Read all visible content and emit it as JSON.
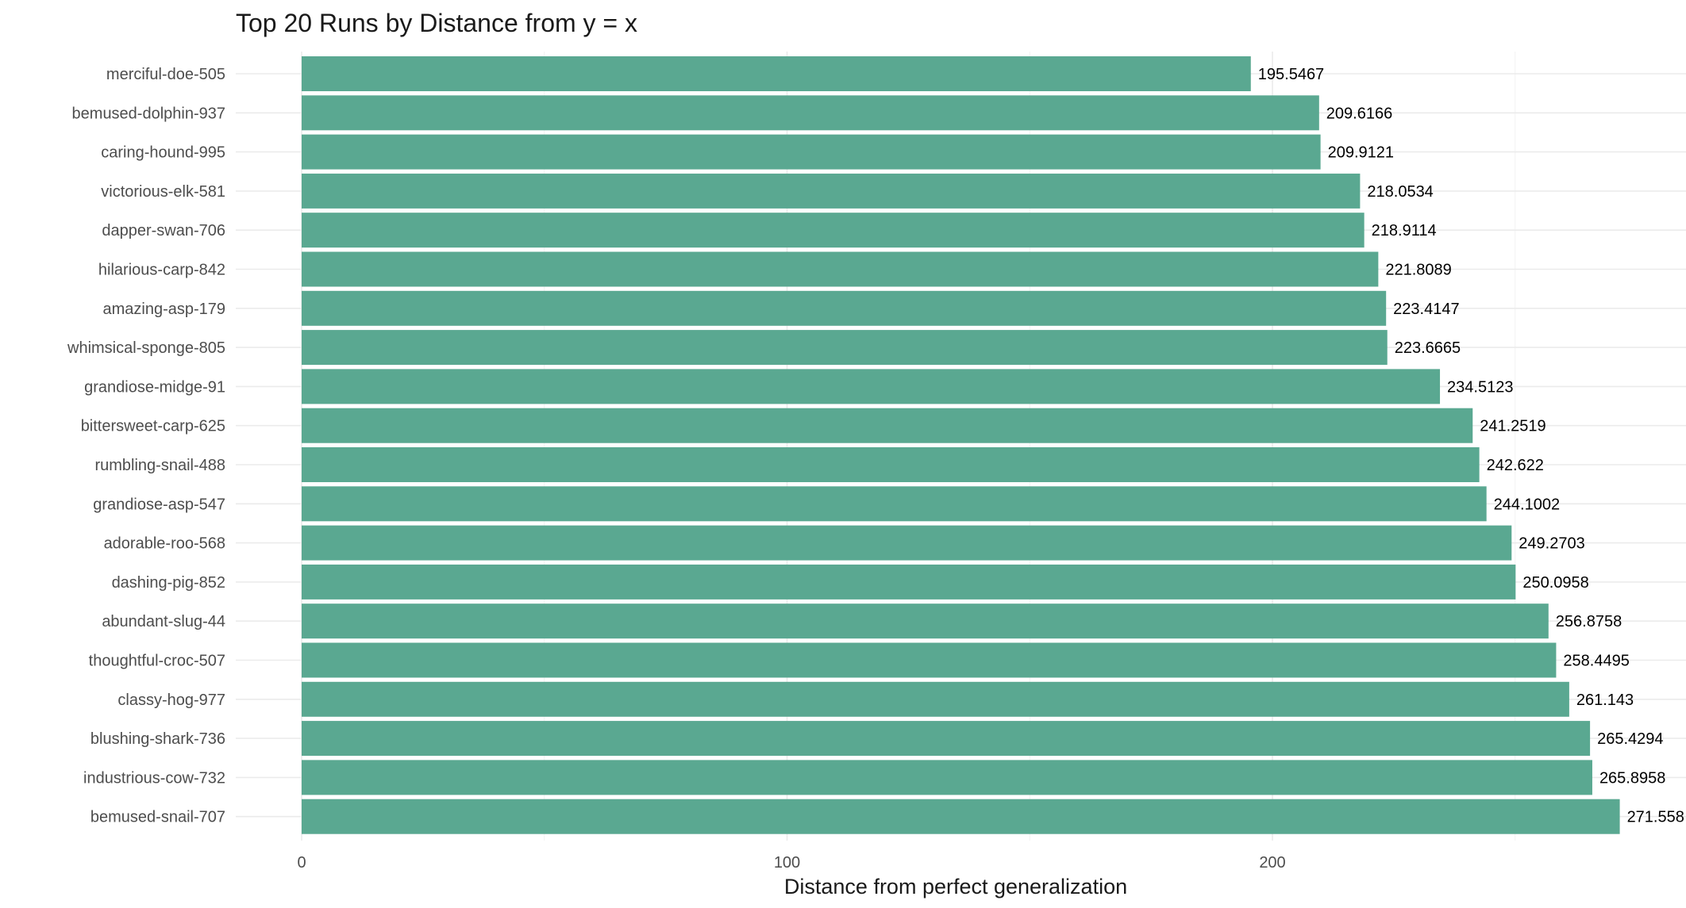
{
  "chart_data": {
    "type": "bar",
    "orientation": "horizontal",
    "title": "Top 20 Runs by Distance from y = x",
    "xlabel": "Distance from perfect generalization",
    "ylabel": "",
    "xlim": [
      0,
      284.5
    ],
    "x_ticks": [
      0,
      100,
      200
    ],
    "grid": true,
    "bar_color": "#5aa891",
    "categories": [
      "merciful-doe-505",
      "bemused-dolphin-937",
      "caring-hound-995",
      "victorious-elk-581",
      "dapper-swan-706",
      "hilarious-carp-842",
      "amazing-asp-179",
      "whimsical-sponge-805",
      "grandiose-midge-91",
      "bittersweet-carp-625",
      "rumbling-snail-488",
      "grandiose-asp-547",
      "adorable-roo-568",
      "dashing-pig-852",
      "abundant-slug-44",
      "thoughtful-croc-507",
      "classy-hog-977",
      "blushing-shark-736",
      "industrious-cow-732",
      "bemused-snail-707"
    ],
    "values": [
      195.5467,
      209.6166,
      209.9121,
      218.0534,
      218.9114,
      221.8089,
      223.4147,
      223.6665,
      234.5123,
      241.2519,
      242.622,
      244.1002,
      249.2703,
      250.0958,
      256.8758,
      258.4495,
      261.143,
      265.4294,
      265.8958,
      271.558
    ],
    "value_labels": [
      "195.5467",
      "209.6166",
      "209.9121",
      "218.0534",
      "218.9114",
      "221.8089",
      "223.4147",
      "223.6665",
      "234.5123",
      "241.2519",
      "242.622",
      "244.1002",
      "249.2703",
      "250.0958",
      "256.8758",
      "258.4495",
      "261.143",
      "265.4294",
      "265.8958",
      "271.558"
    ]
  }
}
